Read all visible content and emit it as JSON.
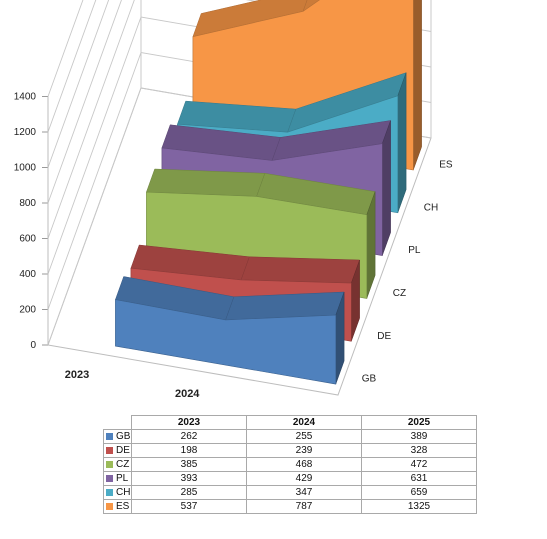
{
  "chart_data": {
    "type": "area",
    "variant": "3d-ribbon",
    "categories": [
      "2023",
      "2024",
      "2025"
    ],
    "series": [
      {
        "name": "GB",
        "values": [
          262,
          255,
          389
        ],
        "color": "#4f81bd"
      },
      {
        "name": "DE",
        "values": [
          198,
          239,
          328
        ],
        "color": "#c0504d"
      },
      {
        "name": "CZ",
        "values": [
          385,
          468,
          472
        ],
        "color": "#9bbb59"
      },
      {
        "name": "PL",
        "values": [
          393,
          429,
          631
        ],
        "color": "#8064a2"
      },
      {
        "name": "CH",
        "values": [
          285,
          347,
          659
        ],
        "color": "#4bacc6"
      },
      {
        "name": "ES",
        "values": [
          537,
          787,
          1325
        ],
        "color": "#f79646"
      }
    ],
    "y_ticks": [
      "0",
      "200",
      "400",
      "600",
      "800",
      "1000",
      "1200",
      "1400"
    ],
    "ylim": [
      0,
      1400
    ],
    "grid": true,
    "data_table": true
  }
}
